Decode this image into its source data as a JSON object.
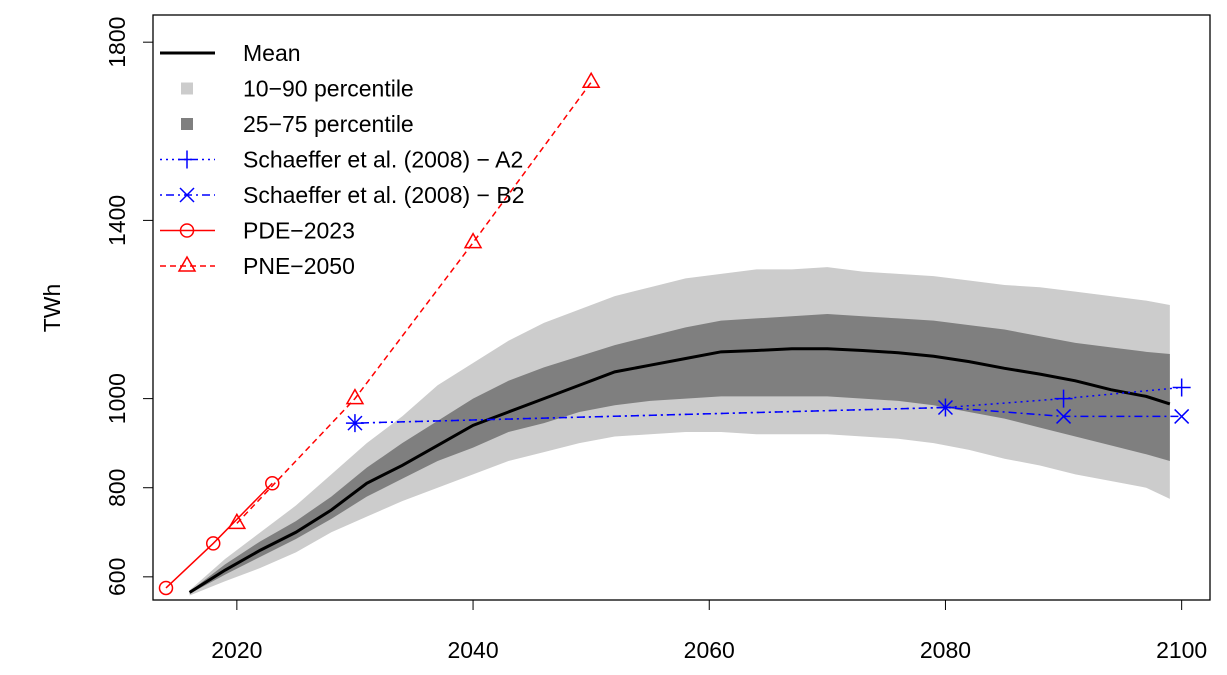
{
  "chart_data": {
    "type": "line",
    "y_label": "TWh",
    "xlim": [
      2012.9,
      2102.4
    ],
    "ylim": [
      548,
      1861
    ],
    "xticks": [
      2020,
      2040,
      2060,
      2080,
      2100
    ],
    "yticks": [
      600,
      800,
      1000,
      1400,
      1800
    ],
    "bands": [
      {
        "name": "10−90 percentile",
        "color": "#cccccc",
        "x": [
          2016,
          2019,
          2022,
          2025,
          2028,
          2031,
          2034,
          2037,
          2040,
          2043,
          2046,
          2049,
          2052,
          2055,
          2058,
          2061,
          2064,
          2067,
          2070,
          2073,
          2076,
          2079,
          2082,
          2085,
          2088,
          2091,
          2094,
          2097,
          2099
        ],
        "lower": [
          558,
          590,
          620,
          655,
          700,
          735,
          770,
          800,
          830,
          860,
          880,
          900,
          915,
          920,
          925,
          925,
          920,
          920,
          920,
          915,
          910,
          900,
          885,
          865,
          850,
          830,
          815,
          800,
          775
        ],
        "upper": [
          570,
          640,
          700,
          760,
          830,
          900,
          960,
          1030,
          1080,
          1130,
          1170,
          1200,
          1230,
          1250,
          1270,
          1280,
          1290,
          1290,
          1295,
          1285,
          1280,
          1275,
          1265,
          1255,
          1250,
          1240,
          1230,
          1220,
          1210
        ]
      },
      {
        "name": "25−75 percentile",
        "color": "#7f7f7f",
        "x": [
          2016,
          2019,
          2022,
          2025,
          2028,
          2031,
          2034,
          2037,
          2040,
          2043,
          2046,
          2049,
          2052,
          2055,
          2058,
          2061,
          2064,
          2067,
          2070,
          2073,
          2076,
          2079,
          2082,
          2085,
          2088,
          2091,
          2094,
          2097,
          2099
        ],
        "lower": [
          562,
          605,
          645,
          685,
          730,
          780,
          820,
          860,
          890,
          925,
          945,
          970,
          985,
          995,
          1000,
          1005,
          1005,
          1005,
          1005,
          1000,
          995,
          985,
          970,
          955,
          935,
          915,
          895,
          875,
          860
        ],
        "upper": [
          567,
          628,
          680,
          725,
          780,
          845,
          900,
          950,
          1000,
          1040,
          1070,
          1095,
          1120,
          1140,
          1160,
          1175,
          1180,
          1185,
          1190,
          1185,
          1180,
          1175,
          1165,
          1155,
          1140,
          1125,
          1115,
          1105,
          1100
        ]
      }
    ],
    "series": [
      {
        "name": "Mean",
        "color": "#000000",
        "dash": "solid",
        "marker": "none",
        "x": [
          2016,
          2019,
          2022,
          2025,
          2028,
          2031,
          2034,
          2037,
          2040,
          2043,
          2046,
          2049,
          2052,
          2055,
          2058,
          2061,
          2064,
          2067,
          2070,
          2073,
          2076,
          2079,
          2082,
          2085,
          2088,
          2091,
          2094,
          2097,
          2099
        ],
        "values": [
          565,
          615,
          660,
          700,
          750,
          810,
          850,
          895,
          940,
          970,
          1000,
          1030,
          1060,
          1075,
          1090,
          1105,
          1108,
          1112,
          1112,
          1108,
          1103,
          1095,
          1083,
          1068,
          1055,
          1040,
          1020,
          1005,
          988
        ]
      },
      {
        "name": "Schaeffer et al. (2008) − A2",
        "color": "#0000ff",
        "dash": "dotted",
        "marker": "plus",
        "x": [
          2030,
          2080,
          2090,
          2100
        ],
        "values": [
          945,
          980,
          1000,
          1025
        ]
      },
      {
        "name": "Schaeffer et al. (2008) − B2",
        "color": "#0000ff",
        "dash": "dotdash",
        "marker": "cross",
        "x": [
          2030,
          2080,
          2090,
          2100
        ],
        "values": [
          945,
          980,
          960,
          960
        ]
      },
      {
        "name": "PDE−2023",
        "color": "#ff0000",
        "dash": "solid",
        "marker": "circle",
        "x": [
          2014,
          2018,
          2023
        ],
        "values": [
          575,
          675,
          810
        ]
      },
      {
        "name": "PNE−2050",
        "color": "#ff0000",
        "dash": "dashed",
        "marker": "triangle",
        "x": [
          2020,
          2030,
          2040,
          2050
        ],
        "values": [
          720,
          1000,
          1350,
          1710
        ]
      }
    ]
  }
}
